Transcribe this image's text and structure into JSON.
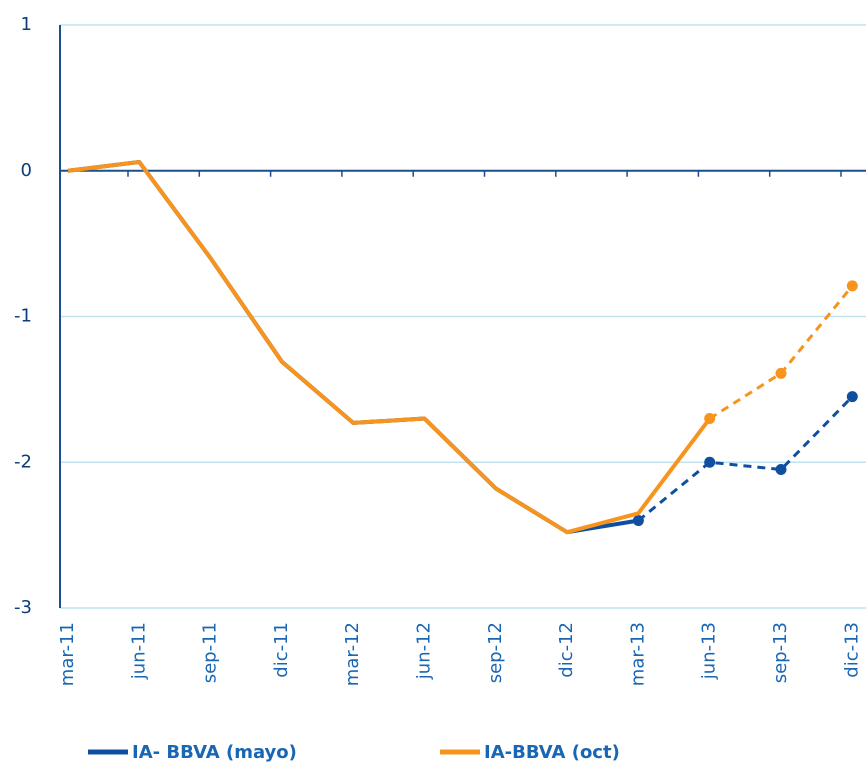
{
  "chart_data": {
    "type": "line",
    "categories": [
      "mar-11",
      "jun-11",
      "sep-11",
      "dic-11",
      "mar-12",
      "jun-12",
      "sep-12",
      "dic-12",
      "mar-13",
      "jun-13",
      "sep-13",
      "dic-13"
    ],
    "series": [
      {
        "name": "IA- BBVA (mayo)",
        "color": "#0f4f9f",
        "dashed_from": 8,
        "values": [
          0,
          0.06,
          -0.6,
          -1.31,
          -1.73,
          -1.7,
          -2.18,
          -2.48,
          -2.4,
          -2.0,
          -2.05,
          -1.55
        ]
      },
      {
        "name": "IA-BBVA (oct)",
        "color": "#f7941d",
        "dashed_from": 9,
        "values": [
          0,
          0.06,
          -0.6,
          -1.31,
          -1.73,
          -1.7,
          -2.18,
          -2.48,
          -2.35,
          -1.7,
          -1.39,
          -0.79
        ]
      }
    ],
    "ylim": [
      -3,
      1
    ],
    "yticks": [
      1,
      0,
      -1,
      -2,
      -3
    ],
    "grid": true,
    "legend": "bottom"
  }
}
